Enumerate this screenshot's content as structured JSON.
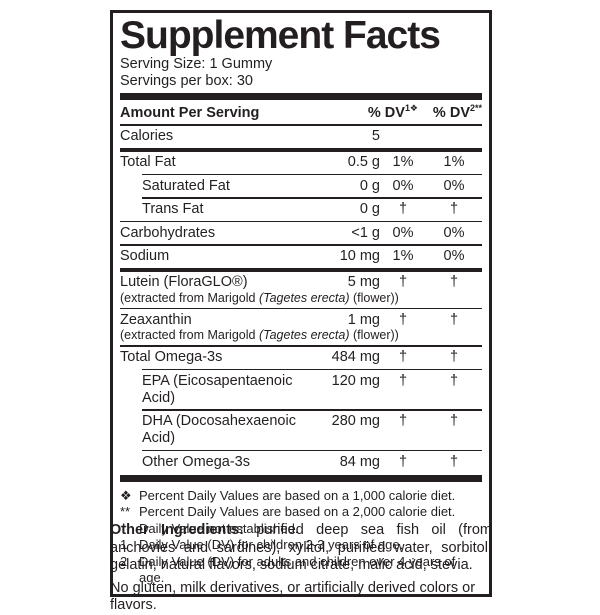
{
  "label": {
    "title": "Supplement Facts",
    "serving_size": "Serving Size: 1 Gummy",
    "servings_per_box": "Servings per box: 30",
    "columns": {
      "amount_header": "Amount Per Serving",
      "dv1_base": "% DV",
      "dv1_sup": "1❖",
      "dv2_base": "% DV",
      "dv2_sup": "2**"
    },
    "rows": [
      {
        "name": "Calories",
        "amount": "5",
        "dv1": "",
        "dv2": ""
      },
      {
        "name": "Total Fat",
        "amount": "0.5 g",
        "dv1": "1%",
        "dv2": "1%"
      },
      {
        "name": "Saturated Fat",
        "amount": "0 g",
        "dv1": "0%",
        "dv2": "0%"
      },
      {
        "name": "Trans Fat",
        "amount": "0 g",
        "dv1": "†",
        "dv2": "†"
      },
      {
        "name": "Carbohydrates",
        "amount": "<1 g",
        "dv1": "0%",
        "dv2": "0%"
      },
      {
        "name": "Sodium",
        "amount": "10 mg",
        "dv1": "1%",
        "dv2": "0%"
      },
      {
        "name": "Lutein (FloraGLO®)",
        "amount": "5 mg",
        "dv1": "†",
        "dv2": "†",
        "sub_pre": "(extracted from Marigold ",
        "sub_italic": "(Tagetes erecta)",
        "sub_post": " (flower))"
      },
      {
        "name": "Zeaxanthin",
        "amount": "1 mg",
        "dv1": "†",
        "dv2": "†",
        "sub_pre": "(extracted from Marigold ",
        "sub_italic": "(Tagetes erecta)",
        "sub_post": " (flower))"
      },
      {
        "name": "Total Omega-3s",
        "amount": "484 mg",
        "dv1": "†",
        "dv2": "†"
      },
      {
        "name": "EPA (Eicosapentaenoic Acid)",
        "amount": "120 mg",
        "dv1": "†",
        "dv2": "†"
      },
      {
        "name": "DHA (Docosahexaenoic Acid)",
        "amount": "280 mg",
        "dv1": "†",
        "dv2": "†"
      },
      {
        "name": "Other Omega-3s",
        "amount": "84 mg",
        "dv1": "†",
        "dv2": "†"
      }
    ],
    "footnotes": [
      {
        "symbol": "❖",
        "text": "Percent Daily Values are based on a 1,000 calorie diet."
      },
      {
        "symbol": "**",
        "text": "Percent Daily Values are based on a 2,000 calorie diet."
      },
      {
        "symbol": "†",
        "text": "Daily Value not established."
      },
      {
        "symbol": "1",
        "text": "Daily Value (DV) for children 2-3 years of age."
      },
      {
        "symbol": "2",
        "text": "Daily Value (DV) for adults and children over 4 years of age."
      }
    ],
    "other_ingredients_label": "Other Ingredients:",
    "other_ingredients_text": " purified deep sea fish oil (from anchovies and sardines), xylitol, purified water, sorbitol, gelatin, natural flavors, sodium citrate, malic acid, stevia.",
    "disclaimer": "No gluten, milk derivatives, or artificially derived colors or flavors.",
    "colors": {
      "ink": "#231f20",
      "background": "#ffffff"
    }
  }
}
